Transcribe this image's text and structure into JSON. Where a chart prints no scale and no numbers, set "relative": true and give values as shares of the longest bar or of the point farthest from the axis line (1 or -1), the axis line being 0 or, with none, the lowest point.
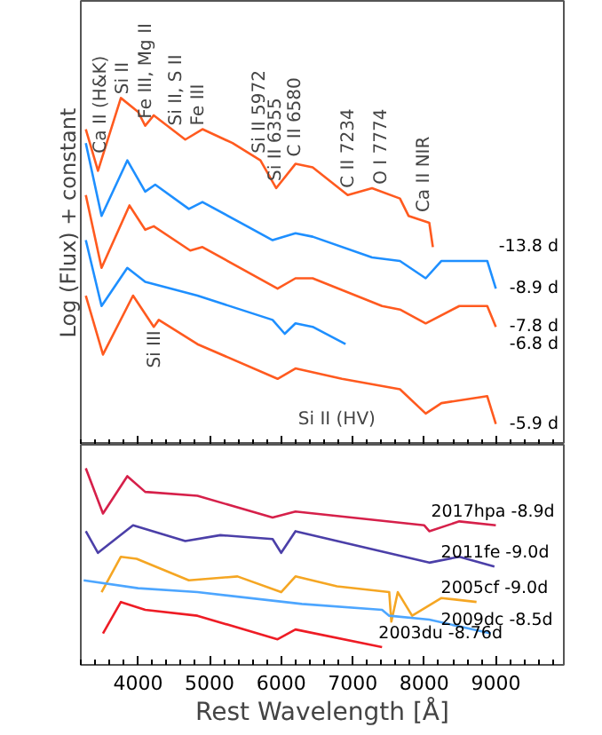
{
  "chart_data": [
    {
      "type": "line",
      "relative": true,
      "ylabel": "Log (Flux) + constant",
      "xlim": [
        3200,
        9950
      ],
      "xticks": [
        4000,
        5000,
        6000,
        7000,
        8000,
        9000
      ],
      "tick_labels": false,
      "legend": false,
      "grid": false,
      "series": [
        {
          "name": "-13.8 d",
          "color": "#ff5a1f",
          "x": [
            3270,
            3440,
            3760,
            4000,
            4100,
            4220,
            4660,
            4900,
            5320,
            5710,
            5930,
            6200,
            6440,
            6930,
            7270,
            7660,
            7780,
            8070,
            8120
          ],
          "values": [
            0.91,
            0.79,
            1.0,
            0.96,
            0.92,
            0.95,
            0.88,
            0.91,
            0.87,
            0.82,
            0.74,
            0.81,
            0.8,
            0.72,
            0.74,
            0.71,
            0.66,
            0.64,
            0.57
          ]
        },
        {
          "name": "-8.9 d",
          "color": "#1e8fff",
          "x": [
            3270,
            3490,
            3850,
            4100,
            4240,
            4710,
            4900,
            5880,
            6200,
            6440,
            7270,
            7660,
            8020,
            8240,
            8880,
            9000
          ],
          "values": [
            0.87,
            0.66,
            0.82,
            0.73,
            0.75,
            0.68,
            0.7,
            0.59,
            0.61,
            0.6,
            0.54,
            0.53,
            0.48,
            0.53,
            0.53,
            0.45
          ]
        },
        {
          "name": "-7.8 d",
          "color": "#ff5a1f",
          "x": [
            3270,
            3490,
            3880,
            4100,
            4220,
            4730,
            4900,
            5950,
            6200,
            6440,
            7410,
            7660,
            8020,
            8490,
            8880,
            9000
          ],
          "values": [
            0.72,
            0.51,
            0.69,
            0.62,
            0.63,
            0.56,
            0.57,
            0.45,
            0.48,
            0.48,
            0.4,
            0.39,
            0.35,
            0.4,
            0.4,
            0.34
          ]
        },
        {
          "name": "-6.8 d",
          "color": "#1e8fff",
          "x": [
            3270,
            3490,
            3850,
            4100,
            4830,
            5880,
            6050,
            6200,
            6440,
            6900
          ],
          "values": [
            0.59,
            0.4,
            0.51,
            0.47,
            0.43,
            0.36,
            0.32,
            0.35,
            0.34,
            0.29
          ]
        },
        {
          "name": "-5.9 d",
          "color": "#ff5a1f",
          "x": [
            3270,
            3510,
            3930,
            4220,
            4290,
            4830,
            5950,
            6200,
            6850,
            7660,
            8020,
            8240,
            8880,
            9000
          ],
          "values": [
            0.43,
            0.26,
            0.43,
            0.34,
            0.36,
            0.29,
            0.19,
            0.22,
            0.19,
            0.16,
            0.09,
            0.12,
            0.14,
            0.06
          ]
        }
      ],
      "annotations": [
        {
          "text": "Ca II (H&K)",
          "x": 3490,
          "y": 0.82
        },
        {
          "text": "Si II",
          "x": 3800,
          "y": 0.99
        },
        {
          "text": "Fe III, Mg II",
          "x": 4120,
          "y": 0.92
        },
        {
          "text": "Si II, S II",
          "x": 4540,
          "y": 0.9
        },
        {
          "text": "Fe III",
          "x": 4850,
          "y": 0.9
        },
        {
          "text": "Si II 5972",
          "x": 5710,
          "y": 0.82
        },
        {
          "text": "Si II 6355",
          "x": 5930,
          "y": 0.74
        },
        {
          "text": "C II 6580",
          "x": 6200,
          "y": 0.81
        },
        {
          "text": "C II 7234",
          "x": 6950,
          "y": 0.72
        },
        {
          "text": "O I 7774",
          "x": 7410,
          "y": 0.73
        },
        {
          "text": "Ca II NIR",
          "x": 8000,
          "y": 0.65
        },
        {
          "text": "Si III",
          "x": 4240,
          "y": 0.35
        },
        "Si II (HV)"
      ]
    },
    {
      "type": "line",
      "relative": true,
      "xlabel": "Rest Wavelength [Å]",
      "xlim": [
        3200,
        9950
      ],
      "xticks": [
        4000,
        5000,
        6000,
        7000,
        8000,
        9000
      ],
      "tick_labels": "x",
      "legend": false,
      "grid": false,
      "series": [
        {
          "name": "2017hpa -8.9d",
          "color": "#d6204a",
          "x": [
            3270,
            3510,
            3850,
            4100,
            4830,
            5880,
            6200,
            8000,
            8070,
            8490,
            9000
          ],
          "values": [
            1.0,
            0.77,
            0.96,
            0.88,
            0.86,
            0.75,
            0.78,
            0.71,
            0.68,
            0.73,
            0.71
          ]
        },
        {
          "name": "2011fe -9.0d",
          "color": "#4b3fa8",
          "x": [
            3270,
            3440,
            3930,
            4660,
            5150,
            5880,
            6000,
            6200,
            8070,
            8490,
            8980
          ],
          "values": [
            0.68,
            0.57,
            0.71,
            0.63,
            0.66,
            0.64,
            0.57,
            0.68,
            0.52,
            0.55,
            0.5
          ]
        },
        {
          "name": "2005cf -9.0d",
          "color": "#f5a623",
          "x": [
            3490,
            3760,
            3980,
            4710,
            5390,
            6000,
            6200,
            6780,
            7510,
            7540,
            7630,
            7830,
            8240,
            8730
          ],
          "values": [
            0.37,
            0.55,
            0.54,
            0.43,
            0.45,
            0.37,
            0.45,
            0.4,
            0.37,
            0.22,
            0.37,
            0.25,
            0.34,
            0.32
          ]
        },
        {
          "name": "2009dc -8.5d",
          "color": "#4da6ff",
          "x": [
            3240,
            4000,
            4830,
            6290,
            7410,
            7510,
            8070,
            8930
          ],
          "values": [
            0.43,
            0.39,
            0.37,
            0.31,
            0.28,
            0.25,
            0.23,
            0.16
          ]
        },
        {
          "name": "2003du -8.76d",
          "color": "#ee1c25",
          "x": [
            3510,
            3760,
            4100,
            4830,
            5950,
            6200,
            7410
          ],
          "values": [
            0.16,
            0.32,
            0.28,
            0.25,
            0.13,
            0.18,
            0.09
          ]
        }
      ]
    }
  ]
}
